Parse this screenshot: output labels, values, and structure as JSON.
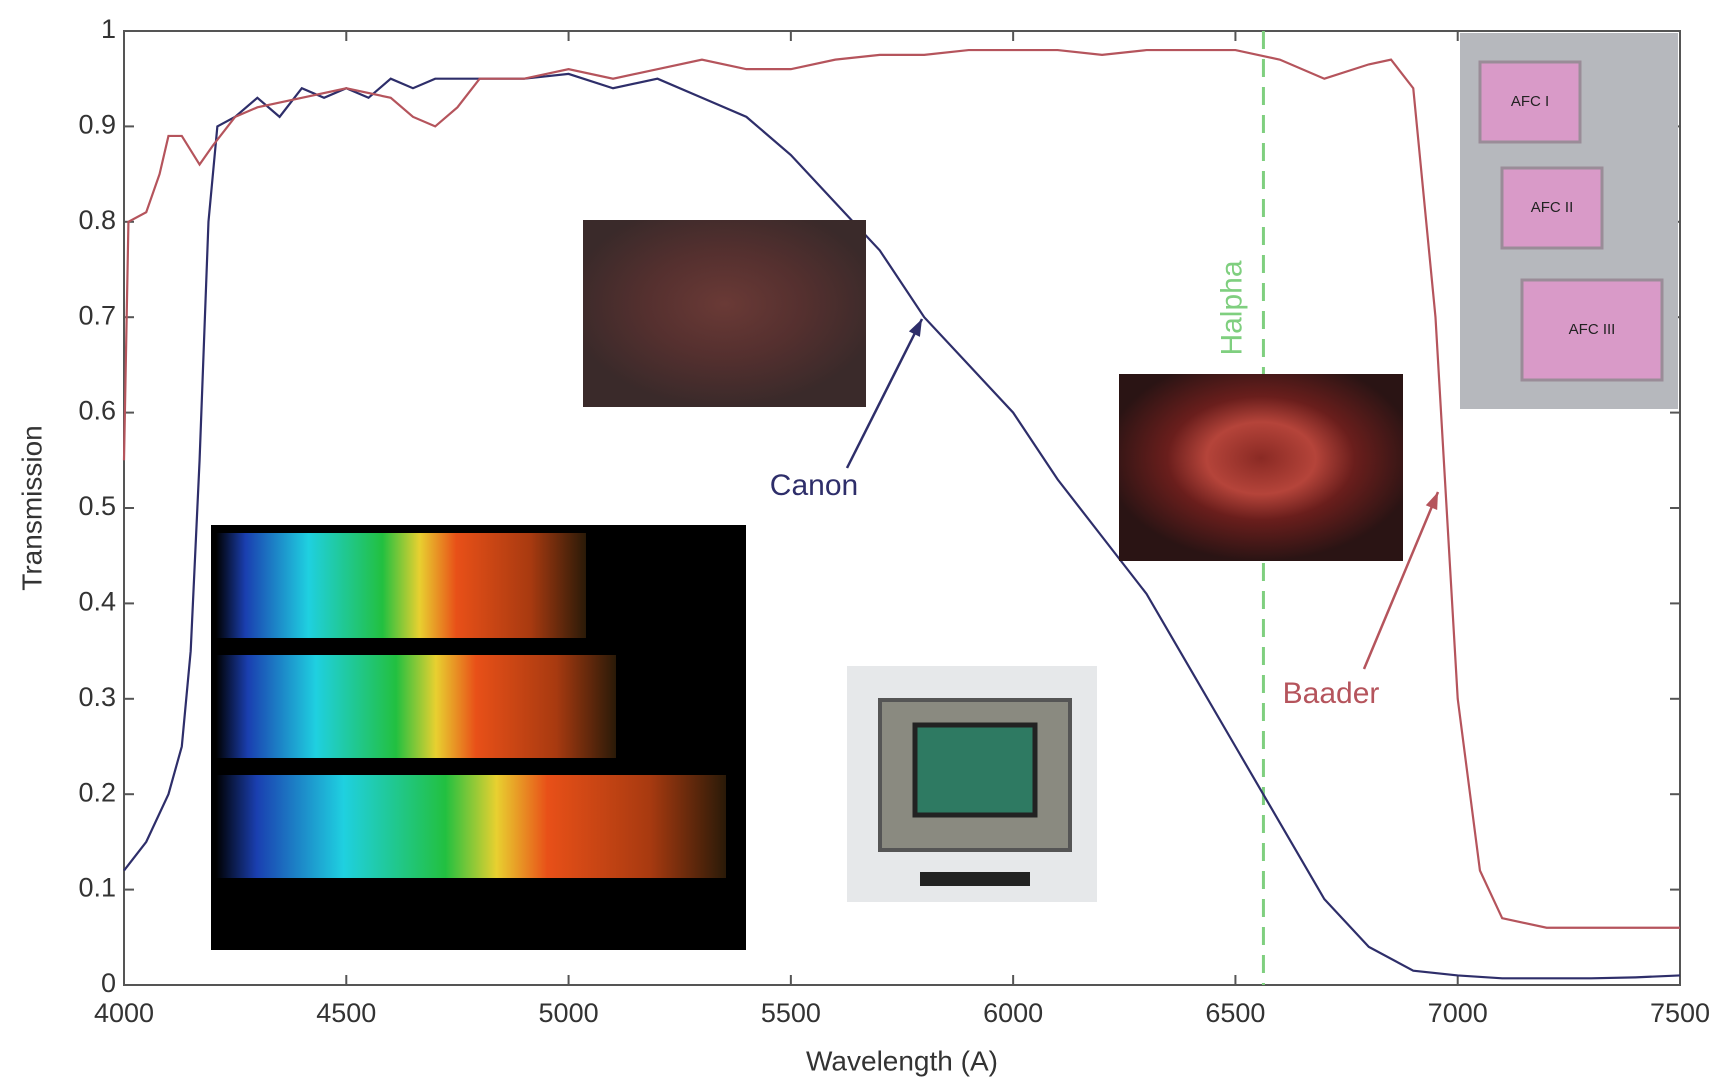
{
  "chart_data": {
    "type": "line",
    "xlabel": "Wavelength (A)",
    "ylabel": "Transmission",
    "xlim": [
      4000,
      7500
    ],
    "ylim": [
      0,
      1
    ],
    "xticks": [
      4000,
      4500,
      5000,
      5500,
      6000,
      6500,
      7000,
      7500
    ],
    "yticks": [
      0,
      0.1,
      0.2,
      0.3,
      0.4,
      0.5,
      0.6,
      0.7,
      0.8,
      0.9,
      1
    ],
    "series": [
      {
        "name": "Canon",
        "color": "#2e2e6a",
        "x": [
          4000,
          4050,
          4100,
          4130,
          4150,
          4170,
          4190,
          4210,
          4250,
          4300,
          4350,
          4400,
          4450,
          4500,
          4550,
          4600,
          4650,
          4700,
          4800,
          4900,
          5000,
          5100,
          5200,
          5300,
          5400,
          5500,
          5600,
          5700,
          5800,
          5900,
          6000,
          6100,
          6200,
          6300,
          6400,
          6500,
          6600,
          6700,
          6800,
          6900,
          7000,
          7100,
          7200,
          7300,
          7400,
          7500
        ],
        "values": [
          0.12,
          0.15,
          0.2,
          0.25,
          0.35,
          0.55,
          0.8,
          0.9,
          0.91,
          0.93,
          0.91,
          0.94,
          0.93,
          0.94,
          0.93,
          0.95,
          0.94,
          0.95,
          0.95,
          0.95,
          0.955,
          0.94,
          0.95,
          0.93,
          0.91,
          0.87,
          0.82,
          0.77,
          0.7,
          0.65,
          0.6,
          0.53,
          0.47,
          0.41,
          0.33,
          0.25,
          0.17,
          0.09,
          0.04,
          0.015,
          0.01,
          0.007,
          0.007,
          0.007,
          0.008,
          0.01
        ]
      },
      {
        "name": "Baader",
        "color": "#b5545c",
        "x": [
          4000,
          4010,
          4050,
          4080,
          4100,
          4130,
          4170,
          4200,
          4250,
          4300,
          4400,
          4500,
          4600,
          4650,
          4700,
          4750,
          4800,
          4900,
          5000,
          5100,
          5200,
          5300,
          5400,
          5500,
          5600,
          5700,
          5800,
          5900,
          6000,
          6100,
          6200,
          6300,
          6400,
          6500,
          6600,
          6700,
          6800,
          6850,
          6900,
          6950,
          7000,
          7050,
          7100,
          7200,
          7300,
          7400,
          7500
        ],
        "values": [
          0.55,
          0.8,
          0.81,
          0.85,
          0.89,
          0.89,
          0.86,
          0.88,
          0.91,
          0.92,
          0.93,
          0.94,
          0.93,
          0.91,
          0.9,
          0.92,
          0.95,
          0.95,
          0.96,
          0.95,
          0.96,
          0.97,
          0.96,
          0.96,
          0.97,
          0.975,
          0.975,
          0.98,
          0.98,
          0.98,
          0.975,
          0.98,
          0.98,
          0.98,
          0.97,
          0.95,
          0.965,
          0.97,
          0.94,
          0.7,
          0.3,
          0.12,
          0.07,
          0.06,
          0.06,
          0.06,
          0.06
        ]
      }
    ],
    "vline": {
      "x": 6563,
      "label": "Halpha",
      "color": "#7fcf7f"
    },
    "filters": [
      "AFC I",
      "AFC II",
      "AFC III"
    ]
  }
}
